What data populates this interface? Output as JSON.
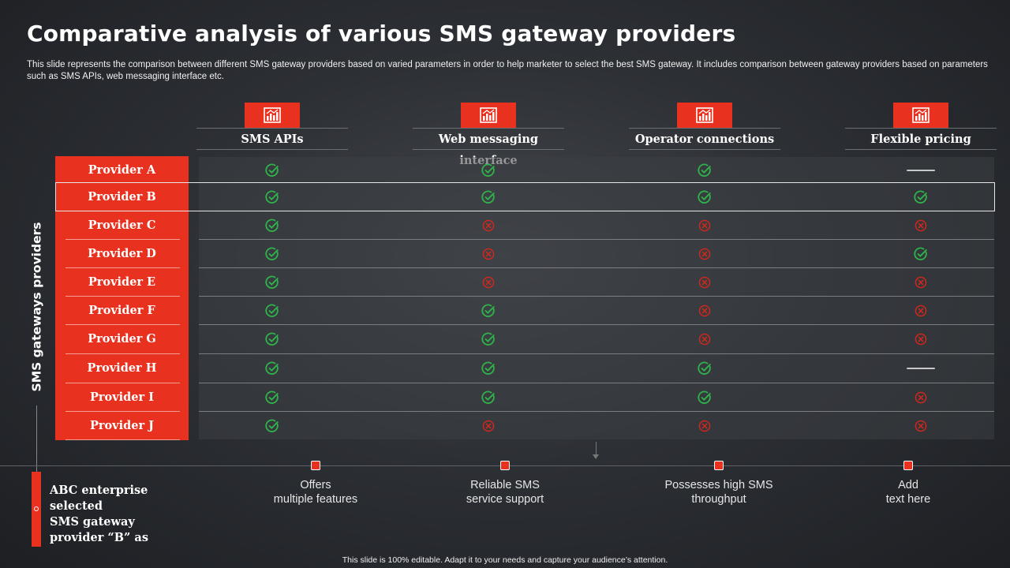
{
  "slide": {
    "title": "Comparative analysis of various SMS gateway providers",
    "subtitle": "This slide represents the comparison between different SMS gateway providers based on varied parameters in order to help marketer to select the best SMS  gateway. It includes comparison between gateway providers based on parameters such as SMS APIs, web messaging interface etc.",
    "side_label": "SMS gateways providers",
    "footer": "This slide is 100% editable. Adapt it to your needs and capture your audience’s attention."
  },
  "columns": [
    {
      "label": "SMS APIs",
      "icon": "bar-chart-icon"
    },
    {
      "label": "Web messaging interface",
      "icon": "bar-chart-icon"
    },
    {
      "label": "Operator connections",
      "icon": "bar-chart-icon"
    },
    {
      "label": "Flexible pricing",
      "icon": "bar-chart-icon"
    }
  ],
  "providers": [
    {
      "name": "Provider A",
      "values": [
        "check",
        "check",
        "check",
        "dash"
      ]
    },
    {
      "name": "Provider B",
      "values": [
        "check",
        "check",
        "check",
        "check"
      ]
    },
    {
      "name": "Provider C",
      "values": [
        "check",
        "cross",
        "cross",
        "cross"
      ]
    },
    {
      "name": "Provider D",
      "values": [
        "check",
        "cross",
        "cross",
        "check"
      ]
    },
    {
      "name": "Provider E",
      "values": [
        "check",
        "cross",
        "cross",
        "cross"
      ]
    },
    {
      "name": "Provider F",
      "values": [
        "check",
        "check",
        "cross",
        "cross"
      ]
    },
    {
      "name": "Provider G",
      "values": [
        "check",
        "check",
        "cross",
        "cross"
      ]
    },
    {
      "name": "Provider H",
      "values": [
        "check",
        "check",
        "check",
        "dash"
      ]
    },
    {
      "name": "Provider I",
      "values": [
        "check",
        "check",
        "check",
        "cross"
      ]
    },
    {
      "name": "Provider J",
      "values": [
        "check",
        "cross",
        "cross",
        "cross"
      ]
    }
  ],
  "highlighted_provider": "Provider B",
  "selection": {
    "line1": "ABC enterprise selected",
    "line2": "SMS gateway",
    "line3": "provider “B” as"
  },
  "features": [
    {
      "line1": "Offers",
      "line2": "multiple features"
    },
    {
      "line1": "Reliable SMS",
      "line2": "service support"
    },
    {
      "line1": "Possesses high SMS",
      "line2": "throughput"
    },
    {
      "line1": "Add",
      "line2": "text here"
    }
  ],
  "colors": {
    "accent": "#e8311f",
    "check": "#2fb34a",
    "cross": "#d7261b",
    "dash": "#c8c8c8"
  }
}
